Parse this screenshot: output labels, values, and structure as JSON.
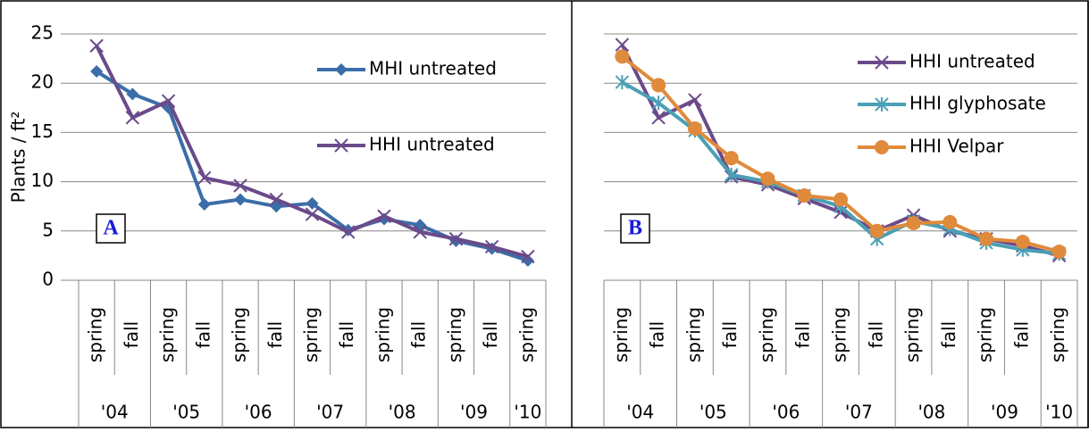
{
  "chart_data": [
    {
      "type": "line",
      "y_label": "Plants / ft²",
      "annotation": "A",
      "categories": [
        "spring",
        "fall",
        "spring",
        "fall",
        "spring",
        "fall",
        "spring",
        "fall",
        "spring",
        "fall",
        "spring",
        "fall",
        "spring"
      ],
      "year_labels": [
        "'04",
        "'05",
        "'06",
        "'07",
        "'08",
        "'09",
        "'10"
      ],
      "ylim": [
        0,
        25
      ],
      "yticks": [
        0,
        5,
        10,
        15,
        20,
        25
      ],
      "grid": true,
      "show_ytick_labels": true,
      "series": [
        {
          "name": "MHI untreated",
          "color": "#3b6ea8",
          "marker": "diamond",
          "values": [
            21.2,
            18.9,
            17.5,
            7.7,
            8.2,
            7.5,
            7.8,
            5.1,
            6.2,
            5.6,
            4.0,
            3.2,
            2.0
          ]
        },
        {
          "name": "HHI untreated",
          "color": "#6b4a8a",
          "marker": "x",
          "values": [
            23.8,
            16.5,
            18.2,
            10.4,
            9.6,
            8.2,
            6.7,
            4.9,
            6.5,
            4.9,
            4.2,
            3.4,
            2.4
          ]
        }
      ]
    },
    {
      "type": "line",
      "annotation": "B",
      "categories": [
        "spring",
        "fall",
        "spring",
        "fall",
        "spring",
        "fall",
        "spring",
        "fall",
        "spring",
        "fall",
        "spring",
        "fall",
        "spring"
      ],
      "year_labels": [
        "'04",
        "'05",
        "'06",
        "'07",
        "'08",
        "'09",
        "'10"
      ],
      "ylim": [
        0,
        25
      ],
      "yticks": [
        0,
        5,
        10,
        15,
        20,
        25
      ],
      "grid": true,
      "show_ytick_labels": false,
      "series": [
        {
          "name": "HHI untreated",
          "color": "#6b4a8a",
          "marker": "x",
          "values": [
            23.9,
            16.5,
            18.3,
            10.5,
            9.7,
            8.3,
            6.9,
            5.0,
            6.6,
            5.0,
            4.2,
            3.5,
            2.5
          ]
        },
        {
          "name": "HHI glyphosate",
          "color": "#4aa0b5",
          "marker": "star",
          "values": [
            20.1,
            18.0,
            15.2,
            10.7,
            10.0,
            8.6,
            7.5,
            4.2,
            6.0,
            5.2,
            3.8,
            3.1,
            2.7
          ]
        },
        {
          "name": "HHI Velpar",
          "color": "#e08a3c",
          "marker": "circle",
          "values": [
            22.7,
            19.8,
            15.4,
            12.4,
            10.3,
            8.6,
            8.2,
            5.0,
            5.8,
            5.9,
            4.2,
            3.9,
            2.9
          ]
        }
      ]
    }
  ]
}
